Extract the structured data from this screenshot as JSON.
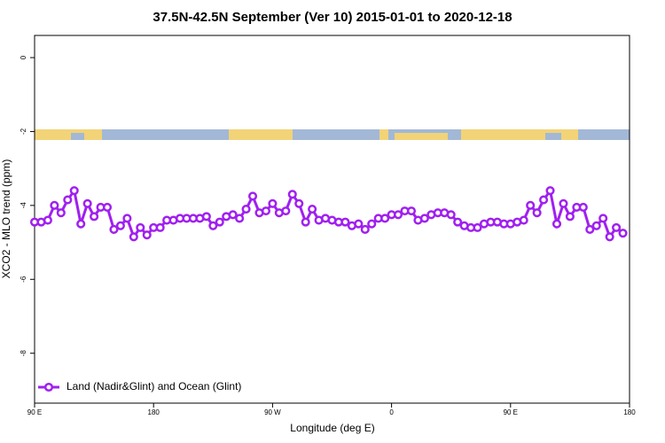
{
  "chart_data": {
    "type": "line",
    "title": "37.5N-42.5N September (Ver 10)   2015-01-01 to 2020-12-18",
    "x_label": "Longitude (deg E)",
    "y_label": "XCO2 - MLO trend (ppm)",
    "x": [
      90,
      95,
      100,
      105,
      110,
      115,
      120,
      125,
      130,
      135,
      140,
      145,
      150,
      155,
      160,
      165,
      170,
      175,
      180,
      185,
      190,
      195,
      200,
      205,
      210,
      215,
      220,
      225,
      230,
      235,
      240,
      245,
      250,
      255,
      260,
      265,
      270,
      275,
      280,
      285,
      290,
      295,
      300,
      305,
      310,
      315,
      320,
      325,
      330,
      335,
      340,
      345,
      350,
      355,
      360,
      365,
      370,
      375,
      380,
      385,
      390,
      395,
      400,
      405,
      410,
      415,
      420,
      425,
      430,
      435,
      440,
      445,
      450,
      455,
      460,
      465,
      470,
      475,
      480,
      485,
      490,
      495,
      500,
      505,
      510,
      515,
      520,
      525,
      530,
      535
    ],
    "series": [
      {
        "name": "Land (Nadir&Glint) and Ocean (Glint)",
        "color": "#a020f0",
        "values": [
          -4.45,
          -4.45,
          -4.4,
          -4.0,
          -4.2,
          -3.85,
          -3.6,
          -4.5,
          -3.95,
          -4.3,
          -4.05,
          -4.05,
          -4.65,
          -4.55,
          -4.35,
          -4.85,
          -4.6,
          -4.8,
          -4.6,
          -4.6,
          -4.4,
          -4.4,
          -4.35,
          -4.35,
          -4.35,
          -4.35,
          -4.3,
          -4.55,
          -4.45,
          -4.3,
          -4.25,
          -4.35,
          -4.1,
          -3.75,
          -4.2,
          -4.15,
          -3.95,
          -4.2,
          -4.15,
          -3.7,
          -3.95,
          -4.45,
          -4.1,
          -4.4,
          -4.35,
          -4.4,
          -4.45,
          -4.45,
          -4.55,
          -4.5,
          -4.65,
          -4.5,
          -4.35,
          -4.35,
          -4.25,
          -4.25,
          -4.15,
          -4.15,
          -4.4,
          -4.35,
          -4.25,
          -4.2,
          -4.2,
          -4.25,
          -4.45,
          -4.55,
          -4.6,
          -4.6,
          -4.5,
          -4.45,
          -4.45,
          -4.5,
          -4.5,
          -4.45,
          -4.4,
          -4.0,
          -4.2,
          -3.85,
          -3.6,
          -4.5,
          -3.95,
          -4.3,
          -4.05,
          -4.05,
          -4.65,
          -4.55,
          -4.35,
          -4.85,
          -4.6,
          -4.75
        ]
      }
    ],
    "xlim": [
      90,
      540
    ],
    "xticks": [
      {
        "value": 90,
        "label": "90 E"
      },
      180,
      {
        "value": 270,
        "label": "90 W"
      },
      {
        "value": 360,
        "label": "0"
      },
      {
        "value": 450,
        "label": "90 E"
      },
      {
        "value": 540,
        "label": "180"
      }
    ],
    "ylim": [
      -9.35,
      0.6
    ],
    "yticks": [
      0,
      -2,
      -4,
      -6,
      -8
    ],
    "grid": false,
    "legend": "bottom-left"
  }
}
